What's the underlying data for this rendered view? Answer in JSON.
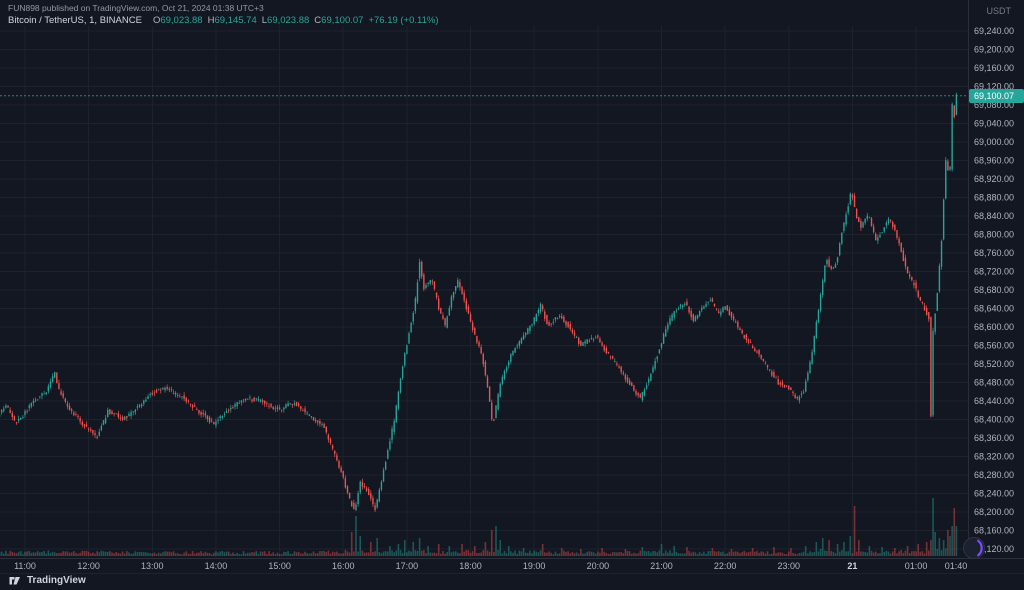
{
  "header": {
    "publisher_line": "FUN898 published on TradingView.com, Oct 21, 2024 01:38 UTC+3",
    "symbol_line": "Bitcoin / TetherUS, 1, BINANCE",
    "ohlc": [
      {
        "k": "O",
        "v": "69,023.88"
      },
      {
        "k": "H",
        "v": "69,145.74"
      },
      {
        "k": "L",
        "v": "69,023.88"
      },
      {
        "k": "C",
        "v": "69,100.07"
      }
    ],
    "change": "+76.19 (+0.11%)"
  },
  "price_scale": {
    "currency": "USDT",
    "last_price_label": "69,100.07"
  },
  "footer": {
    "brand": "TradingView"
  },
  "chart_data": {
    "type": "candlestick",
    "title": "Bitcoin / TetherUS, 1, BINANCE",
    "pair": "BTC/USDT",
    "exchange": "BINANCE",
    "interval_minutes": 1,
    "last_price": 69100.07,
    "last_candle": {
      "open": 69023.88,
      "high": 69145.74,
      "low": 69023.88,
      "close": 69100.07,
      "change": 76.19,
      "change_pct": 0.11
    },
    "y_axis": {
      "min": 68120,
      "max": 69240,
      "tick_step": 40
    },
    "x_axis": {
      "labels": [
        {
          "t": 0,
          "label": "11:00"
        },
        {
          "t": 60,
          "label": "12:00"
        },
        {
          "t": 120,
          "label": "13:00"
        },
        {
          "t": 180,
          "label": "14:00"
        },
        {
          "t": 240,
          "label": "15:00"
        },
        {
          "t": 300,
          "label": "16:00"
        },
        {
          "t": 360,
          "label": "17:00"
        },
        {
          "t": 420,
          "label": "18:00"
        },
        {
          "t": 480,
          "label": "19:00"
        },
        {
          "t": 540,
          "label": "20:00"
        },
        {
          "t": 600,
          "label": "21:00"
        },
        {
          "t": 660,
          "label": "22:00"
        },
        {
          "t": 720,
          "label": "23:00"
        },
        {
          "t": 780,
          "label": "21",
          "emphasis": true
        },
        {
          "t": 840,
          "label": "01:00"
        },
        {
          "t": 880,
          "label": "01:40",
          "grid": false
        }
      ]
    },
    "t_start": -24,
    "t_end": 880,
    "price_path": [
      [
        -24,
        68410
      ],
      [
        -16,
        68432
      ],
      [
        -8,
        68395
      ],
      [
        0,
        68408
      ],
      [
        10,
        68440
      ],
      [
        22,
        68458
      ],
      [
        30,
        68502
      ],
      [
        34,
        68462
      ],
      [
        45,
        68418
      ],
      [
        60,
        68382
      ],
      [
        70,
        68362
      ],
      [
        80,
        68418
      ],
      [
        95,
        68402
      ],
      [
        110,
        68430
      ],
      [
        122,
        68458
      ],
      [
        134,
        68468
      ],
      [
        150,
        68448
      ],
      [
        165,
        68420
      ],
      [
        180,
        68390
      ],
      [
        195,
        68424
      ],
      [
        210,
        68446
      ],
      [
        225,
        68440
      ],
      [
        240,
        68420
      ],
      [
        255,
        68436
      ],
      [
        270,
        68408
      ],
      [
        283,
        68386
      ],
      [
        293,
        68330
      ],
      [
        300,
        68286
      ],
      [
        308,
        68226
      ],
      [
        313,
        68200
      ],
      [
        318,
        68264
      ],
      [
        326,
        68240
      ],
      [
        332,
        68206
      ],
      [
        340,
        68290
      ],
      [
        350,
        68398
      ],
      [
        358,
        68516
      ],
      [
        365,
        68598
      ],
      [
        370,
        68658
      ],
      [
        374,
        68744
      ],
      [
        378,
        68682
      ],
      [
        385,
        68706
      ],
      [
        392,
        68642
      ],
      [
        398,
        68602
      ],
      [
        404,
        68664
      ],
      [
        410,
        68700
      ],
      [
        418,
        68642
      ],
      [
        424,
        68596
      ],
      [
        432,
        68546
      ],
      [
        438,
        68470
      ],
      [
        443,
        68388
      ],
      [
        450,
        68478
      ],
      [
        460,
        68540
      ],
      [
        470,
        68576
      ],
      [
        480,
        68606
      ],
      [
        488,
        68648
      ],
      [
        495,
        68602
      ],
      [
        505,
        68626
      ],
      [
        515,
        68600
      ],
      [
        525,
        68562
      ],
      [
        540,
        68580
      ],
      [
        550,
        68546
      ],
      [
        562,
        68510
      ],
      [
        575,
        68466
      ],
      [
        582,
        68446
      ],
      [
        590,
        68486
      ],
      [
        600,
        68554
      ],
      [
        608,
        68610
      ],
      [
        616,
        68640
      ],
      [
        624,
        68654
      ],
      [
        632,
        68616
      ],
      [
        640,
        68640
      ],
      [
        648,
        68658
      ],
      [
        656,
        68626
      ],
      [
        662,
        68644
      ],
      [
        670,
        68614
      ],
      [
        680,
        68580
      ],
      [
        692,
        68546
      ],
      [
        702,
        68510
      ],
      [
        712,
        68480
      ],
      [
        722,
        68468
      ],
      [
        730,
        68444
      ],
      [
        736,
        68462
      ],
      [
        742,
        68520
      ],
      [
        750,
        68638
      ],
      [
        757,
        68748
      ],
      [
        763,
        68718
      ],
      [
        768,
        68754
      ],
      [
        772,
        68804
      ],
      [
        777,
        68854
      ],
      [
        781,
        68894
      ],
      [
        785,
        68842
      ],
      [
        790,
        68814
      ],
      [
        797,
        68844
      ],
      [
        804,
        68790
      ],
      [
        810,
        68806
      ],
      [
        816,
        68834
      ],
      [
        822,
        68810
      ],
      [
        828,
        68762
      ],
      [
        834,
        68712
      ],
      [
        840,
        68694
      ],
      [
        845,
        68662
      ],
      [
        850,
        68640
      ],
      [
        854,
        68618
      ],
      [
        856,
        68408
      ],
      [
        858,
        68588
      ],
      [
        862,
        68678
      ],
      [
        866,
        68788
      ],
      [
        869,
        68916
      ],
      [
        871,
        69004
      ],
      [
        873,
        68882
      ],
      [
        875,
        69008
      ],
      [
        877,
        69152
      ],
      [
        878,
        69058
      ],
      [
        880,
        69100
      ]
    ],
    "volume_spikes": [
      [
        308,
        24
      ],
      [
        312,
        40
      ],
      [
        316,
        20
      ],
      [
        326,
        14
      ],
      [
        332,
        18
      ],
      [
        344,
        10
      ],
      [
        352,
        12
      ],
      [
        358,
        16
      ],
      [
        366,
        14
      ],
      [
        372,
        18
      ],
      [
        380,
        10
      ],
      [
        390,
        12
      ],
      [
        400,
        10
      ],
      [
        412,
        12
      ],
      [
        424,
        10
      ],
      [
        434,
        14
      ],
      [
        440,
        26
      ],
      [
        444,
        30
      ],
      [
        448,
        16
      ],
      [
        456,
        10
      ],
      [
        470,
        8
      ],
      [
        488,
        12
      ],
      [
        506,
        8
      ],
      [
        524,
        7
      ],
      [
        544,
        8
      ],
      [
        566,
        7
      ],
      [
        582,
        9
      ],
      [
        600,
        12
      ],
      [
        612,
        10
      ],
      [
        624,
        9
      ],
      [
        648,
        8
      ],
      [
        666,
        7
      ],
      [
        686,
        8
      ],
      [
        706,
        9
      ],
      [
        722,
        8
      ],
      [
        736,
        10
      ],
      [
        746,
        14
      ],
      [
        752,
        18
      ],
      [
        758,
        16
      ],
      [
        766,
        12
      ],
      [
        772,
        14
      ],
      [
        778,
        20
      ],
      [
        782,
        50
      ],
      [
        786,
        16
      ],
      [
        796,
        10
      ],
      [
        808,
        9
      ],
      [
        820,
        8
      ],
      [
        832,
        10
      ],
      [
        842,
        12
      ],
      [
        850,
        14
      ],
      [
        856,
        58
      ],
      [
        858,
        24
      ],
      [
        862,
        18
      ],
      [
        866,
        16
      ],
      [
        870,
        26
      ],
      [
        872,
        20
      ],
      [
        874,
        30
      ],
      [
        876,
        48
      ],
      [
        878,
        30
      ]
    ],
    "colors": {
      "up": "#26a69a",
      "down": "#ef5350",
      "vol_up": "rgba(38,166,154,0.45)",
      "vol_down": "rgba(239,83,80,0.45)",
      "grid": "#1e222d",
      "axis_border": "#2a2e39",
      "axis_text": "#b2b5be",
      "axis_text_strong": "#d1d4dc",
      "background": "#131722",
      "last_price_line": "#26a69a"
    },
    "render": {
      "seed": 7,
      "step": 2,
      "jitter": 9
    }
  }
}
